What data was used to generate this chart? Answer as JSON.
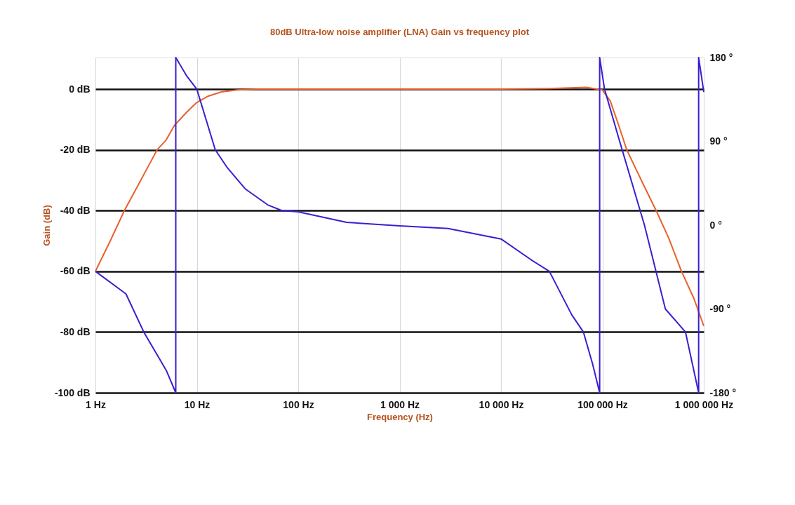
{
  "chart_data": {
    "type": "line",
    "title": "80dB Ultra-low noise amplifier (LNA) Gain vs frequency plot",
    "xlabel": "Frequency (Hz)",
    "ylabel": "Gain (dB)",
    "log": "x",
    "grid": true,
    "marker": "none",
    "line_style": "solid",
    "xlim": [
      1,
      1000000
    ],
    "xticks": [
      {
        "value": 1,
        "label": "1 Hz"
      },
      {
        "value": 10,
        "label": "10 Hz"
      },
      {
        "value": 100,
        "label": "100 Hz"
      },
      {
        "value": 1000,
        "label": "1 000 Hz"
      },
      {
        "value": 10000,
        "label": "10 000 Hz"
      },
      {
        "value": 100000,
        "label": "100 000 Hz"
      },
      {
        "value": 1000000,
        "label": "1 000 000 Hz"
      }
    ],
    "ylim": [
      -100,
      10.4
    ],
    "yticks": [
      {
        "value": 0,
        "label": "0 dB"
      },
      {
        "value": -20,
        "label": "-20 dB"
      },
      {
        "value": -40,
        "label": "-40 dB"
      },
      {
        "value": -60,
        "label": "-60 dB"
      },
      {
        "value": -80,
        "label": "-80 dB"
      },
      {
        "value": -100,
        "label": "-100 dB"
      }
    ],
    "y2lim": [
      -180,
      180
    ],
    "y2ticks": [
      {
        "value": 180,
        "label": "180 °"
      },
      {
        "value": 90,
        "label": "90 °"
      },
      {
        "value": 0,
        "label": "0 °"
      },
      {
        "value": -90,
        "label": "-90 °"
      },
      {
        "value": -180,
        "label": "-180 °"
      }
    ],
    "series": [
      {
        "color": "#e8602c",
        "axis": "y",
        "x": [
          1,
          1.4,
          1.93,
          2.8,
          4.06,
          5,
          6,
          8,
          10,
          13,
          17.5,
          25,
          40,
          100,
          1000,
          10000,
          30000,
          69000,
          100000,
          120000,
          145000,
          174000,
          250000,
          339000,
          450000,
          603000,
          800000,
          1000000
        ],
        "values": [
          -60,
          -50,
          -40,
          -30,
          -20,
          -16.7,
          -12,
          -7.5,
          -4.4,
          -2.3,
          -0.9,
          -0.3,
          0,
          0,
          0,
          0,
          0.2,
          0.6,
          -0.3,
          -4,
          -12,
          -20,
          -31,
          -40,
          -49,
          -60,
          -69,
          -78
        ]
      },
      {
        "color": "#3a1fd0",
        "axis": "y2",
        "x": [
          1,
          2,
          3,
          5,
          6.2,
          6.2,
          8,
          10,
          15.2,
          20,
          30,
          50,
          69,
          100,
          300,
          1000,
          3000,
          10000,
          20000,
          30000,
          50000,
          65000,
          80000,
          94000,
          94000,
          105000,
          148000,
          260000,
          418000,
          660000,
          890000,
          890000,
          1000000
        ],
        "values": [
          -49.6,
          -73.8,
          -114.8,
          -156,
          -180,
          180,
          159.7,
          146,
          81,
          61.6,
          39,
          21.8,
          15.6,
          14.3,
          3,
          -0.7,
          -3.5,
          -14.8,
          -37.5,
          -49.6,
          -96.5,
          -114.8,
          -149,
          -180,
          180,
          146,
          90,
          0,
          -90,
          -114.8,
          -180,
          180,
          143
        ]
      }
    ]
  }
}
